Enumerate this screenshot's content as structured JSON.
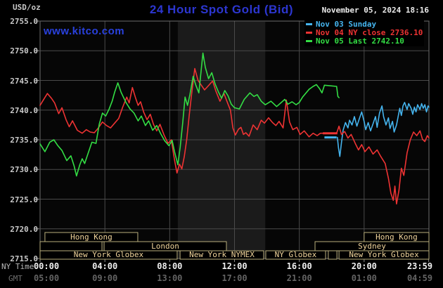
{
  "header": {
    "units_label": "USD/oz",
    "title": "24 Hour Spot Gold (Bid)",
    "watermark": "www.kitco.com",
    "datetime": "November 05, 2024 18:16"
  },
  "colors": {
    "background": "#000000",
    "plot_bg": "#060606",
    "nymex_band": "#1b1b1b",
    "grid": "#4a4a4a",
    "frame": "#6e6e6e",
    "tick": "#8a8a8a",
    "title_blue": "#2c36d0",
    "watermark_blue": "#2941de",
    "session_border": "#b9ae7c",
    "session_text": "#f0d49b",
    "series_cyan": "#45b4ee",
    "series_red": "#ee3333",
    "series_green": "#33dd44"
  },
  "legend": [
    {
      "label": "Nov 03 Sunday",
      "color_key": "series_cyan"
    },
    {
      "label": "Nov 04 NY close 2736.10",
      "color_key": "series_red"
    },
    {
      "label": "Nov 05 Last 2742.10",
      "color_key": "series_green"
    }
  ],
  "axes": {
    "y": {
      "labels": [
        {
          "text": "2755.0",
          "value": 2755
        },
        {
          "text": "2750.0",
          "value": 2750
        },
        {
          "text": "2745.0",
          "value": 2745
        },
        {
          "text": "2740.0",
          "value": 2740
        },
        {
          "text": "2735.0",
          "value": 2735
        },
        {
          "text": "2730.0",
          "value": 2730
        },
        {
          "text": "2725.0",
          "value": 2725
        },
        {
          "text": "2720.0",
          "value": 2720
        },
        {
          "text": "2715.0",
          "value": 2715
        }
      ]
    },
    "x": {
      "ny_row_label": "NY Time",
      "gmt_row_label": "GMT",
      "hours": [
        0,
        4,
        8,
        12,
        16,
        20,
        23.983
      ],
      "ny_labels": [
        "00:00",
        "04:00",
        "08:00",
        "12:00",
        "16:00",
        "20:00",
        "23:59"
      ],
      "gmt_labels": [
        "05:00",
        "09:00",
        "13:00",
        "17:00",
        "21:00",
        "01:00",
        "04:59"
      ]
    }
  },
  "sessions": {
    "rows": [
      {
        "bars": [
          {
            "from": 0.3,
            "to": 6.03,
            "label": "Hong Kong"
          },
          {
            "from": 20.0,
            "to": 24.0,
            "label": "Hong Kong"
          }
        ]
      },
      {
        "bars": [
          {
            "from": 0.0,
            "to": 3.82,
            "label": ""
          },
          {
            "from": 3.95,
            "to": 11.5,
            "label": "London"
          },
          {
            "from": 16.97,
            "to": 24.0,
            "label": "Sydney"
          }
        ]
      },
      {
        "bars": [
          {
            "from": 0.0,
            "to": 8.46,
            "label": "New York Globex"
          },
          {
            "from": 8.64,
            "to": 13.8,
            "label": "New York NYMEX"
          },
          {
            "from": 13.93,
            "to": 17.62,
            "label": "NY Globex"
          },
          {
            "from": 17.79,
            "to": 18.32,
            "label": ""
          },
          {
            "from": 18.45,
            "to": 24.0,
            "label": "New York Globex"
          }
        ]
      }
    ]
  },
  "chart_data": {
    "type": "line",
    "title": "24 Hour Spot Gold (Bid)",
    "xlabel": "NY Time (hours 0-24)",
    "ylabel": "USD/oz",
    "ylim": [
      2715,
      2755
    ],
    "xlim_hours": [
      0,
      24
    ],
    "grid": true,
    "legend_position": "top-right",
    "nymex_band_hours": [
      8.5,
      13.9
    ],
    "close_markers": [
      {
        "series": "nov04",
        "color_key": "series_red",
        "from": 17.45,
        "to": 18.35,
        "value": 2736.1
      },
      {
        "series": "nov03",
        "color_key": "series_cyan",
        "from": 17.55,
        "to": 18.3,
        "value": 2735.4
      }
    ],
    "series": [
      {
        "name": "nov03-sunday",
        "color_key": "series_cyan",
        "last": 2740.5,
        "points": [
          [
            18.35,
            2735.4
          ],
          [
            18.42,
            2733.6
          ],
          [
            18.5,
            2732.2
          ],
          [
            18.6,
            2734.5
          ],
          [
            18.7,
            2736.6
          ],
          [
            18.85,
            2737.9
          ],
          [
            19.0,
            2737.0
          ],
          [
            19.1,
            2738.3
          ],
          [
            19.25,
            2737.5
          ],
          [
            19.4,
            2738.9
          ],
          [
            19.55,
            2737.3
          ],
          [
            19.7,
            2738.5
          ],
          [
            19.85,
            2739.7
          ],
          [
            20.0,
            2738.1
          ],
          [
            20.1,
            2736.7
          ],
          [
            20.25,
            2737.9
          ],
          [
            20.4,
            2736.5
          ],
          [
            20.55,
            2737.7
          ],
          [
            20.7,
            2738.9
          ],
          [
            20.8,
            2737.1
          ],
          [
            20.95,
            2739.5
          ],
          [
            21.1,
            2740.7
          ],
          [
            21.2,
            2738.9
          ],
          [
            21.35,
            2737.5
          ],
          [
            21.5,
            2738.7
          ],
          [
            21.6,
            2736.9
          ],
          [
            21.75,
            2738.1
          ],
          [
            21.85,
            2736.3
          ],
          [
            22.0,
            2737.5
          ],
          [
            22.1,
            2738.9
          ],
          [
            22.2,
            2740.3
          ],
          [
            22.3,
            2739.1
          ],
          [
            22.4,
            2740.7
          ],
          [
            22.5,
            2741.3
          ],
          [
            22.65,
            2740.1
          ],
          [
            22.75,
            2741.1
          ],
          [
            22.9,
            2740.3
          ],
          [
            23.0,
            2739.3
          ],
          [
            23.1,
            2740.5
          ],
          [
            23.2,
            2739.7
          ],
          [
            23.3,
            2740.9
          ],
          [
            23.45,
            2740.1
          ],
          [
            23.55,
            2741.1
          ],
          [
            23.65,
            2740.3
          ],
          [
            23.75,
            2740.9
          ],
          [
            23.85,
            2739.7
          ],
          [
            23.95,
            2740.7
          ],
          [
            24.0,
            2740.5
          ]
        ]
      },
      {
        "name": "nov04",
        "color_key": "series_red",
        "close": 2736.1,
        "points": [
          [
            0,
            2740.8
          ],
          [
            0.2,
            2741.7
          ],
          [
            0.45,
            2742.8
          ],
          [
            0.7,
            2742.0
          ],
          [
            0.9,
            2741.2
          ],
          [
            1.15,
            2739.4
          ],
          [
            1.35,
            2740.4
          ],
          [
            1.6,
            2738.4
          ],
          [
            1.8,
            2737.2
          ],
          [
            2.0,
            2738.2
          ],
          [
            2.3,
            2736.6
          ],
          [
            2.6,
            2736.1
          ],
          [
            2.85,
            2736.7
          ],
          [
            3.1,
            2736.3
          ],
          [
            3.35,
            2736.2
          ],
          [
            3.6,
            2737.0
          ],
          [
            3.85,
            2738.0
          ],
          [
            4.1,
            2737.4
          ],
          [
            4.35,
            2737.0
          ],
          [
            4.6,
            2737.8
          ],
          [
            4.85,
            2738.6
          ],
          [
            5.1,
            2740.5
          ],
          [
            5.35,
            2742.2
          ],
          [
            5.5,
            2741.2
          ],
          [
            5.7,
            2743.8
          ],
          [
            5.9,
            2742.0
          ],
          [
            6.05,
            2740.8
          ],
          [
            6.2,
            2741.4
          ],
          [
            6.4,
            2739.6
          ],
          [
            6.6,
            2738.4
          ],
          [
            6.8,
            2739.3
          ],
          [
            7.0,
            2737.6
          ],
          [
            7.2,
            2736.5
          ],
          [
            7.4,
            2737.6
          ],
          [
            7.65,
            2735.8
          ],
          [
            7.9,
            2734.4
          ],
          [
            8.1,
            2735.0
          ],
          [
            8.3,
            2731.6
          ],
          [
            8.45,
            2729.4
          ],
          [
            8.6,
            2730.9
          ],
          [
            8.75,
            2730.1
          ],
          [
            8.9,
            2732.2
          ],
          [
            9.05,
            2735.0
          ],
          [
            9.2,
            2739.0
          ],
          [
            9.35,
            2742.6
          ],
          [
            9.55,
            2747.0
          ],
          [
            9.75,
            2745.0
          ],
          [
            9.95,
            2744.2
          ],
          [
            10.15,
            2743.4
          ],
          [
            10.35,
            2744.0
          ],
          [
            10.65,
            2744.9
          ],
          [
            10.85,
            2743.2
          ],
          [
            11.1,
            2741.5
          ],
          [
            11.35,
            2742.8
          ],
          [
            11.6,
            2741.0
          ],
          [
            11.75,
            2740.0
          ],
          [
            11.9,
            2737.0
          ],
          [
            12.05,
            2735.8
          ],
          [
            12.25,
            2736.8
          ],
          [
            12.4,
            2737.1
          ],
          [
            12.55,
            2735.9
          ],
          [
            12.7,
            2736.2
          ],
          [
            12.9,
            2735.6
          ],
          [
            13.15,
            2737.5
          ],
          [
            13.4,
            2736.7
          ],
          [
            13.65,
            2738.3
          ],
          [
            13.85,
            2737.8
          ],
          [
            14.1,
            2738.7
          ],
          [
            14.35,
            2737.9
          ],
          [
            14.55,
            2737.4
          ],
          [
            14.75,
            2738.1
          ],
          [
            15.0,
            2737.0
          ],
          [
            15.2,
            2741.7
          ],
          [
            15.4,
            2738.0
          ],
          [
            15.6,
            2736.7
          ],
          [
            15.85,
            2737.1
          ],
          [
            16.05,
            2735.9
          ],
          [
            16.3,
            2736.5
          ],
          [
            16.6,
            2735.5
          ],
          [
            16.85,
            2736.1
          ],
          [
            17.1,
            2735.7
          ],
          [
            17.3,
            2736.1
          ],
          [
            18.3,
            2736.1
          ],
          [
            18.45,
            2737.3
          ],
          [
            18.6,
            2735.9
          ],
          [
            18.8,
            2736.4
          ],
          [
            19.0,
            2735.3
          ],
          [
            19.2,
            2735.9
          ],
          [
            19.45,
            2734.4
          ],
          [
            19.65,
            2733.3
          ],
          [
            19.85,
            2734.2
          ],
          [
            20.05,
            2733.0
          ],
          [
            20.3,
            2733.8
          ],
          [
            20.55,
            2732.6
          ],
          [
            20.8,
            2733.3
          ],
          [
            21.0,
            2732.3
          ],
          [
            21.3,
            2731.0
          ],
          [
            21.5,
            2728.5
          ],
          [
            21.65,
            2726.0
          ],
          [
            21.8,
            2724.8
          ],
          [
            21.9,
            2727.2
          ],
          [
            22.0,
            2724.2
          ],
          [
            22.15,
            2726.5
          ],
          [
            22.3,
            2730.2
          ],
          [
            22.45,
            2729.0
          ],
          [
            22.65,
            2732.8
          ],
          [
            22.85,
            2735.0
          ],
          [
            23.05,
            2736.3
          ],
          [
            23.25,
            2735.7
          ],
          [
            23.45,
            2736.5
          ],
          [
            23.6,
            2735.1
          ],
          [
            23.75,
            2734.7
          ],
          [
            23.9,
            2735.7
          ],
          [
            24.0,
            2735.3
          ]
        ]
      },
      {
        "name": "nov05",
        "color_key": "series_green",
        "last": 2742.1,
        "points": [
          [
            0,
            2734.3
          ],
          [
            0.3,
            2733.0
          ],
          [
            0.6,
            2734.6
          ],
          [
            0.85,
            2735.0
          ],
          [
            1.1,
            2734.0
          ],
          [
            1.35,
            2733.2
          ],
          [
            1.65,
            2731.5
          ],
          [
            1.9,
            2732.3
          ],
          [
            2.1,
            2730.6
          ],
          [
            2.25,
            2728.9
          ],
          [
            2.45,
            2730.8
          ],
          [
            2.6,
            2731.8
          ],
          [
            2.75,
            2731.0
          ],
          [
            3.0,
            2733.0
          ],
          [
            3.2,
            2734.6
          ],
          [
            3.45,
            2734.4
          ],
          [
            3.65,
            2737.6
          ],
          [
            3.85,
            2739.5
          ],
          [
            4.05,
            2739.0
          ],
          [
            4.25,
            2740.1
          ],
          [
            4.45,
            2741.5
          ],
          [
            4.6,
            2743.0
          ],
          [
            4.8,
            2744.6
          ],
          [
            5.0,
            2743.0
          ],
          [
            5.3,
            2741.3
          ],
          [
            5.55,
            2740.2
          ],
          [
            5.8,
            2739.5
          ],
          [
            6.05,
            2738.2
          ],
          [
            6.25,
            2739.0
          ],
          [
            6.5,
            2737.4
          ],
          [
            6.7,
            2738.2
          ],
          [
            6.95,
            2736.6
          ],
          [
            7.2,
            2737.4
          ],
          [
            7.45,
            2736.0
          ],
          [
            7.7,
            2734.8
          ],
          [
            7.95,
            2734.0
          ],
          [
            8.15,
            2734.9
          ],
          [
            8.3,
            2733.0
          ],
          [
            8.5,
            2730.8
          ],
          [
            8.65,
            2733.8
          ],
          [
            8.8,
            2737.8
          ],
          [
            8.95,
            2742.2
          ],
          [
            9.1,
            2740.8
          ],
          [
            9.25,
            2742.6
          ],
          [
            9.45,
            2745.7
          ],
          [
            9.6,
            2744.3
          ],
          [
            9.8,
            2742.9
          ],
          [
            10.05,
            2749.6
          ],
          [
            10.2,
            2747.2
          ],
          [
            10.4,
            2745.3
          ],
          [
            10.6,
            2746.3
          ],
          [
            10.8,
            2744.4
          ],
          [
            11.0,
            2743.1
          ],
          [
            11.2,
            2742.0
          ],
          [
            11.4,
            2743.3
          ],
          [
            11.6,
            2742.4
          ],
          [
            11.8,
            2741.0
          ],
          [
            12.0,
            2740.4
          ],
          [
            12.3,
            2740.2
          ],
          [
            12.6,
            2741.8
          ],
          [
            12.95,
            2742.9
          ],
          [
            13.2,
            2742.3
          ],
          [
            13.4,
            2742.6
          ],
          [
            13.65,
            2741.5
          ],
          [
            13.9,
            2740.9
          ],
          [
            14.25,
            2741.5
          ],
          [
            14.6,
            2740.6
          ],
          [
            14.85,
            2741.2
          ],
          [
            15.1,
            2741.8
          ],
          [
            15.3,
            2741.0
          ],
          [
            15.55,
            2741.4
          ],
          [
            15.8,
            2740.9
          ],
          [
            16.0,
            2741.3
          ],
          [
            16.2,
            2742.2
          ],
          [
            16.6,
            2743.5
          ],
          [
            16.85,
            2744.0
          ],
          [
            17.05,
            2744.3
          ],
          [
            17.25,
            2743.6
          ],
          [
            17.4,
            2742.9
          ],
          [
            17.55,
            2744.2
          ],
          [
            18.3,
            2744.0
          ],
          [
            18.38,
            2742.3
          ],
          [
            18.45,
            2742.1
          ]
        ]
      }
    ]
  }
}
